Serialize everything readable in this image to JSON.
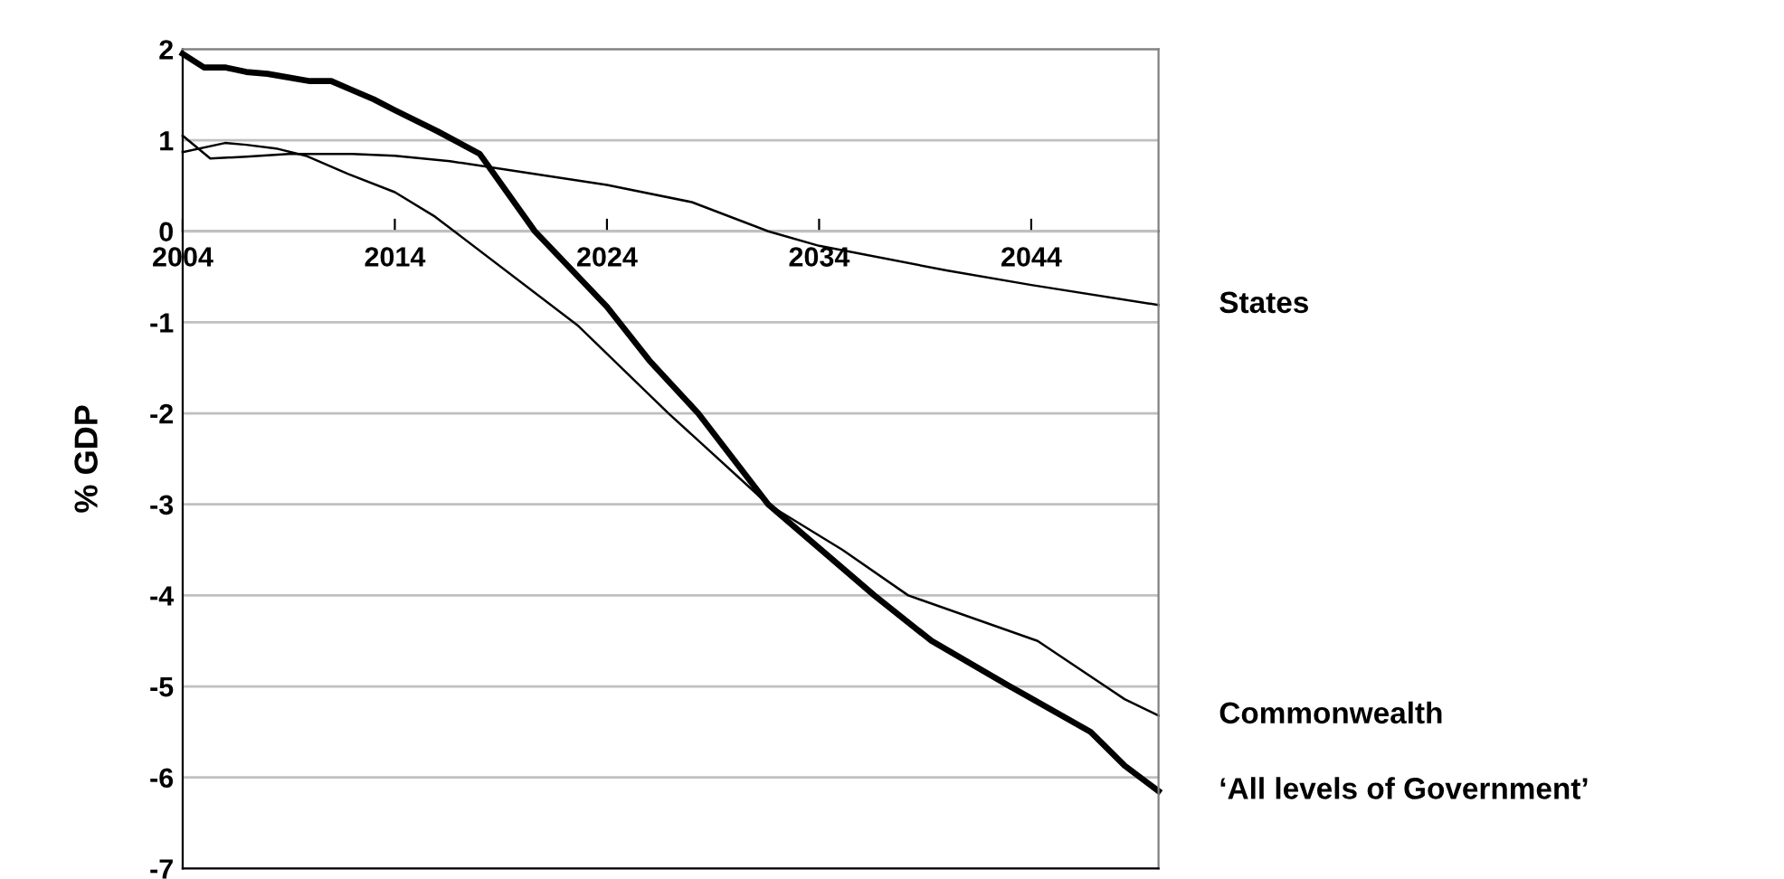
{
  "chart_data": {
    "type": "line",
    "ylabel": "% GDP",
    "xlim": [
      2004,
      2050
    ],
    "xticks": [
      2004,
      2014,
      2024,
      2034,
      2044
    ],
    "ylim": [
      -7,
      2
    ],
    "yticks": [
      -7,
      -6,
      -5,
      -4,
      -3,
      -2,
      -1,
      0,
      1,
      2
    ],
    "grid": "y",
    "legend": false,
    "marker": "none",
    "line_style": "solid",
    "series": [
      {
        "name": "States",
        "color": "#000000",
        "x": [
          2004,
          2005.3,
          2007,
          2009,
          2012,
          2014,
          2016.6,
          2020,
          2024,
          2028,
          2031.6,
          2034,
          2040,
          2044,
          2050
        ],
        "values": [
          1.05,
          0.8,
          0.82,
          0.85,
          0.85,
          0.83,
          0.77,
          0.65,
          0.51,
          0.32,
          0,
          -0.16,
          -0.43,
          -0.59,
          -0.81
        ]
      },
      {
        "name": "Commonwealth",
        "color": "#000000",
        "x": [
          2004,
          2006,
          2007,
          2008.4,
          2009.8,
          2011.8,
          2014,
          2015.9,
          2016.8,
          2022.6,
          2026.9,
          2031.6,
          2035.1,
          2038.2,
          2044.3,
          2048.4,
          2050
        ],
        "values": [
          0.87,
          0.97,
          0.95,
          0.91,
          0.83,
          0.63,
          0.43,
          0.16,
          0,
          -1.03,
          -2,
          -3,
          -3.5,
          -4,
          -4.5,
          -5.14,
          -5.32
        ]
      },
      {
        "name": "‘All levels of Government’",
        "color": "#000000",
        "x": [
          2004,
          2005,
          2006,
          2007,
          2008,
          2010,
          2011,
          2012,
          2013,
          2014,
          2016,
          2018,
          2020.6,
          2024,
          2026,
          2028.3,
          2031.6,
          2036.6,
          2039.3,
          2043,
          2046.8,
          2048.4,
          2050
        ],
        "values": [
          1.95,
          1.8,
          1.8,
          1.75,
          1.73,
          1.65,
          1.65,
          1.55,
          1.45,
          1.33,
          1.1,
          0.85,
          0,
          -0.83,
          -1.42,
          -2,
          -3,
          -4,
          -4.5,
          -5,
          -5.5,
          -5.87,
          -6.15
        ]
      }
    ]
  }
}
